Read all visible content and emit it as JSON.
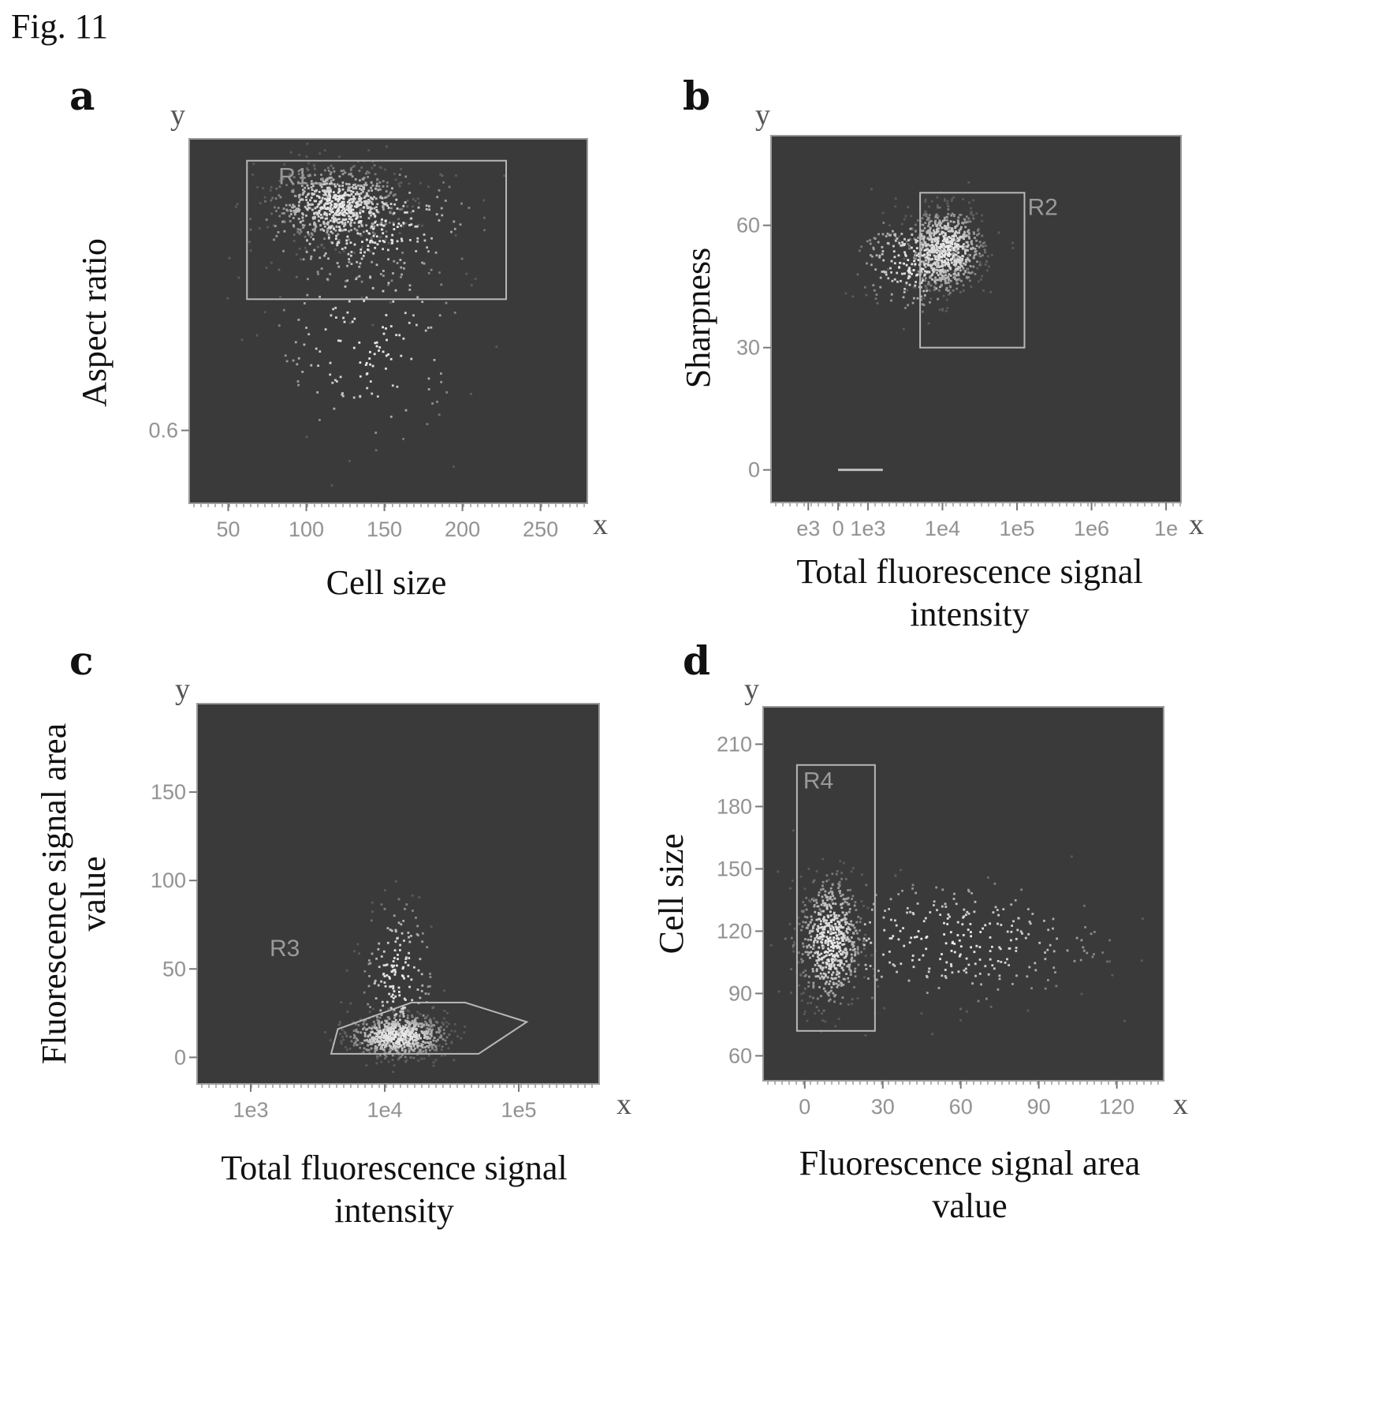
{
  "figure": {
    "title": "Fig. 11"
  },
  "chart_data": [
    {
      "panel": "a",
      "type": "scatter",
      "xlabel": "Cell size",
      "ylabel": "Aspect ratio",
      "x_axis_letter": "x",
      "y_axis_letter": "y",
      "x_ticks": [
        50,
        100,
        150,
        200,
        250
      ],
      "x_tick_labels": [
        "50",
        "100",
        "150",
        "200",
        "250"
      ],
      "y_ticks": [
        0.6
      ],
      "y_tick_labels": [
        "0.6"
      ],
      "xlim": [
        25,
        280
      ],
      "ylim": [
        0.5,
        1.0
      ],
      "gate": {
        "label": "R1",
        "shape": "rectangle",
        "x": [
          62,
          228
        ],
        "y": [
          0.78,
          0.97
        ]
      },
      "clusters": [
        {
          "cx": 120,
          "cy": 0.91,
          "sx": 20,
          "sy": 0.025,
          "n": 700
        },
        {
          "cx": 140,
          "cy": 0.88,
          "sx": 35,
          "sy": 0.04,
          "n": 300
        },
        {
          "cx": 140,
          "cy": 0.72,
          "sx": 30,
          "sy": 0.07,
          "n": 160
        }
      ]
    },
    {
      "panel": "b",
      "type": "scatter",
      "xlabel": "Total fluorescence signal intensity",
      "ylabel": "Sharpness",
      "x_axis_letter": "x",
      "y_axis_letter": "y",
      "x_scale": "log (position = log10 value)",
      "x_ticks": [
        2.2,
        2.6,
        3.0,
        4.0,
        5.0,
        6.0,
        7.0
      ],
      "x_tick_labels": [
        "e3",
        "0",
        "1e3",
        "1e4",
        "1e5",
        "1e6",
        "1e"
      ],
      "y_ticks": [
        0,
        30,
        60
      ],
      "y_tick_labels": [
        "0",
        "30",
        "60"
      ],
      "xlim": [
        1.7,
        7.2
      ],
      "ylim": [
        -8,
        82
      ],
      "gate": {
        "label": "R2",
        "shape": "rectangle",
        "x": [
          3.7,
          5.1
        ],
        "y": [
          30,
          68
        ]
      },
      "clusters": [
        {
          "cx": 4.05,
          "cy": 54,
          "sx": 0.25,
          "sy": 5,
          "n": 750
        },
        {
          "cx": 3.6,
          "cy": 51,
          "sx": 0.35,
          "sy": 6,
          "n": 250
        }
      ],
      "baseline_segment": {
        "x": [
          2.6,
          3.2
        ],
        "y": 0
      }
    },
    {
      "panel": "c",
      "type": "scatter",
      "xlabel": "Total fluorescence signal intensity",
      "ylabel": "Fluorescence signal area value",
      "x_axis_letter": "x",
      "y_axis_letter": "y",
      "x_scale": "log (position = log10 value)",
      "x_ticks": [
        3,
        4,
        5
      ],
      "x_tick_labels": [
        "1e3",
        "1e4",
        "1e5"
      ],
      "y_ticks": [
        0,
        50,
        100,
        150
      ],
      "y_tick_labels": [
        "0",
        "50",
        "100",
        "150"
      ],
      "xlim": [
        2.6,
        5.6
      ],
      "ylim": [
        -15,
        200
      ],
      "gate": {
        "label": "R3",
        "shape": "polygon",
        "x": [
          3.6,
          3.65,
          4.2,
          4.6,
          5.06,
          4.7,
          3.6
        ],
        "y": [
          2,
          16,
          31,
          31,
          20,
          2,
          2
        ]
      },
      "clusters": [
        {
          "cx": 4.1,
          "cy": 12,
          "sx": 0.18,
          "sy": 6,
          "n": 700
        },
        {
          "cx": 4.1,
          "cy": 45,
          "sx": 0.13,
          "sy": 22,
          "n": 200
        }
      ]
    },
    {
      "panel": "d",
      "type": "scatter",
      "xlabel": "Fluorescence signal area value",
      "ylabel": "Cell size",
      "x_axis_letter": "x",
      "y_axis_letter": "y",
      "x_ticks": [
        0,
        30,
        60,
        90,
        120
      ],
      "x_tick_labels": [
        "0",
        "30",
        "60",
        "90",
        "120"
      ],
      "y_ticks": [
        60,
        90,
        120,
        150,
        180,
        210
      ],
      "y_tick_labels": [
        "60",
        "90",
        "120",
        "150",
        "180",
        "210"
      ],
      "xlim": [
        -16,
        138
      ],
      "ylim": [
        48,
        228
      ],
      "gate": {
        "label": "R4",
        "shape": "rectangle",
        "x": [
          -3,
          27
        ],
        "y": [
          72,
          200
        ]
      },
      "clusters": [
        {
          "cx": 10,
          "cy": 115,
          "sx": 6,
          "sy": 16,
          "n": 650
        },
        {
          "cx": 55,
          "cy": 115,
          "sx": 30,
          "sy": 15,
          "n": 300
        }
      ]
    }
  ]
}
